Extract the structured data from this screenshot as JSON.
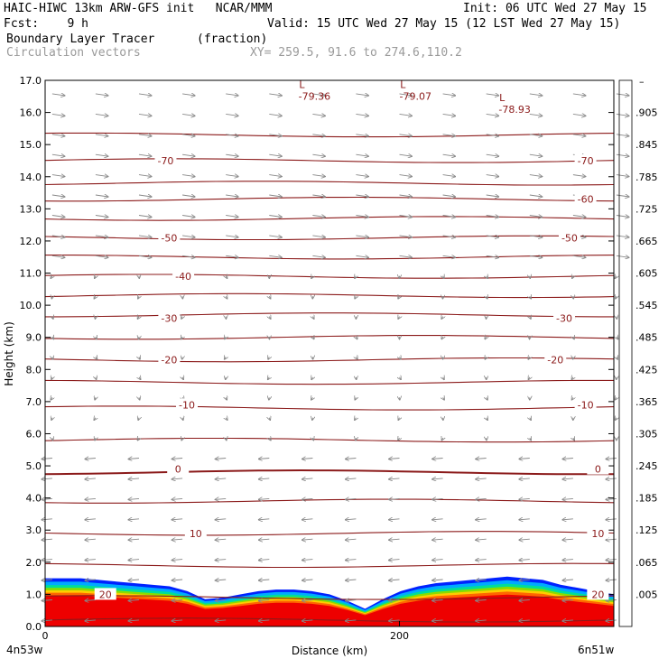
{
  "header": {
    "line1_left": "HAIC-HIWC 13km ARW-GFS init   NCAR/MMM",
    "line1_right": "Init: 06 UTC Wed 27 May 15",
    "fcst": "Fcst:    9 h",
    "valid": "Valid: 15 UTC Wed 27 May 15 (12 LST Wed 27 May 15)",
    "field": "Boundary Layer Tracer",
    "units": "(fraction)",
    "vectors": "Circulation vectors",
    "xy": "XY= 259.5, 91.6 to 274.6,110.2"
  },
  "chart_data": {
    "type": "heatmap",
    "title": "Boundary Layer Tracer",
    "xlabel": "Distance (km)",
    "ylabel": "Height (km)",
    "x_tick_labels": [
      "0",
      "200"
    ],
    "x_ticks": [
      0,
      200
    ],
    "xlim": [
      0,
      321
    ],
    "ylim": [
      0.0,
      17.0
    ],
    "y_ticks": [
      "0.0",
      "1.0",
      "2.0",
      "3.0",
      "4.0",
      "5.0",
      "6.0",
      "7.0",
      "8.0",
      "9.0",
      "10.0",
      "11.0",
      "12.0",
      "13.0",
      "14.0",
      "15.0",
      "16.0",
      "17.0"
    ],
    "endpoint_labels": {
      "left": "4n53w",
      "right": "6n51w"
    },
    "colorbar": {
      "labels": [
        ".005",
        ".065",
        ".125",
        ".185",
        ".245",
        ".305",
        ".365",
        ".425",
        ".485",
        ".545",
        ".605",
        ".665",
        ".725",
        ".785",
        ".845",
        ".905"
      ],
      "colors": [
        "#ffffff",
        "#0033ff",
        "#0066ff",
        "#0099ff",
        "#00bbee",
        "#00cccc",
        "#00cc88",
        "#00cc44",
        "#22cc00",
        "#66dd00",
        "#aadd00",
        "#dddd00",
        "#ffcc00",
        "#ff9900",
        "#ff6600",
        "#ff3300",
        "#ee0000"
      ]
    },
    "temperature_contours": {
      "color": "#8b1a1a",
      "labels": [
        {
          "text": "-70",
          "x": 68,
          "y": 14.5
        },
        {
          "text": "-70",
          "x": 305,
          "y": 14.5
        },
        {
          "text": "-60",
          "x": 305,
          "y": 13.3
        },
        {
          "text": "-50",
          "x": 70,
          "y": 12.1
        },
        {
          "text": "-50",
          "x": 296,
          "y": 12.1
        },
        {
          "text": "-40",
          "x": 78,
          "y": 10.9
        },
        {
          "text": "-30",
          "x": 70,
          "y": 9.6
        },
        {
          "text": "-30",
          "x": 293,
          "y": 9.6
        },
        {
          "text": "-20",
          "x": 70,
          "y": 8.3
        },
        {
          "text": "-20",
          "x": 288,
          "y": 8.3
        },
        {
          "text": "-10",
          "x": 80,
          "y": 6.9
        },
        {
          "text": "-10",
          "x": 305,
          "y": 6.9
        },
        {
          "text": "0",
          "x": 75,
          "y": 4.9
        },
        {
          "text": "0",
          "x": 312,
          "y": 4.9
        },
        {
          "text": "10",
          "x": 85,
          "y": 2.9
        },
        {
          "text": "10",
          "x": 312,
          "y": 2.9
        },
        {
          "text": "20",
          "x": 34,
          "y": 1.0
        },
        {
          "text": "20",
          "x": 312,
          "y": 1.0
        }
      ]
    },
    "lows": [
      {
        "letter": "L",
        "value": "-79.36",
        "x": 150,
        "y": 16.7
      },
      {
        "letter": "L",
        "value": "-79.07",
        "x": 207,
        "y": 16.7
      },
      {
        "letter": "L",
        "value": "-78.93",
        "x": 263,
        "y": 16.3
      }
    ],
    "tracer_top_km": [
      1.5,
      1.5,
      1.5,
      1.45,
      1.4,
      1.35,
      1.3,
      1.25,
      1.1,
      0.85,
      0.9,
      1.0,
      1.1,
      1.15,
      1.15,
      1.1,
      1.0,
      0.8,
      0.55,
      0.85,
      1.1,
      1.25,
      1.35,
      1.4,
      1.45,
      1.5,
      1.55,
      1.5,
      1.45,
      1.3,
      1.2,
      1.1,
      1.0
    ]
  }
}
